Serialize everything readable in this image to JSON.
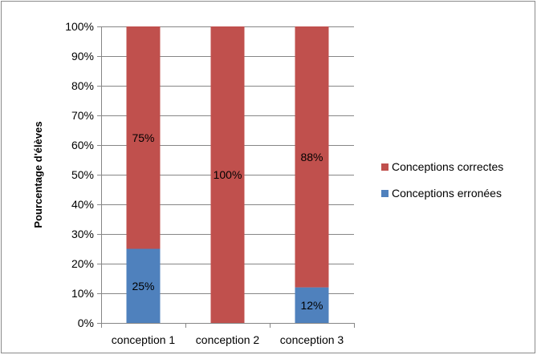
{
  "chart_data": {
    "type": "bar",
    "stacked": true,
    "percent_stacked": true,
    "title": "",
    "xlabel": "",
    "ylabel": "Pourcentage d'élèves",
    "categories": [
      "conception 1",
      "conception 2",
      "conception 3"
    ],
    "ylim": [
      0,
      100
    ],
    "yticks": [
      0,
      10,
      20,
      30,
      40,
      50,
      60,
      70,
      80,
      90,
      100
    ],
    "ytick_labels": [
      "0%",
      "10%",
      "20%",
      "30%",
      "40%",
      "50%",
      "60%",
      "70%",
      "80%",
      "90%",
      "100%"
    ],
    "grid": true,
    "legend_position": "right",
    "series": [
      {
        "name": "Conceptions erronées",
        "values": [
          25,
          0,
          12
        ],
        "labels": [
          "25%",
          "",
          "12%"
        ],
        "color": "#4f81bd"
      },
      {
        "name": "Conceptions correctes",
        "values": [
          75,
          100,
          88
        ],
        "labels": [
          "75%",
          "100%",
          "88%"
        ],
        "color": "#c0504d"
      }
    ],
    "legend_order": [
      "Conceptions correctes",
      "Conceptions erronées"
    ]
  }
}
